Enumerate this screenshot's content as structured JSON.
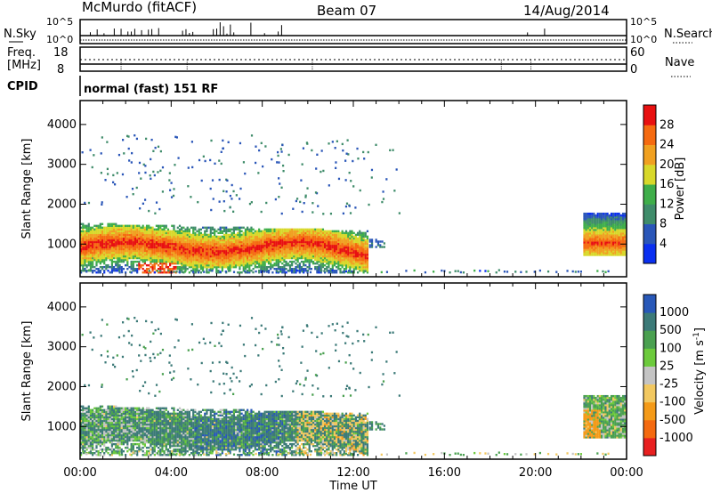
{
  "header": {
    "station": "McMurdo (fitACF)",
    "beam": "Beam 07",
    "date": "14/Aug/2014"
  },
  "top_panel": {
    "left_label": "N.Sky",
    "right_label": "N.Search",
    "left_ticks": [
      "10^5",
      "10^0"
    ],
    "right_ticks": [
      "10^5",
      "10^0"
    ]
  },
  "freq_panel": {
    "left_label_line1": "Freq.",
    "left_label_line2": "[MHz]",
    "left_ticks": [
      "18",
      "8"
    ],
    "right_label": "Nave",
    "right_ticks": [
      "60",
      "0"
    ]
  },
  "cpid": {
    "label": "CPID",
    "value": "normal (fast) 151 RF"
  },
  "x_axis": {
    "label": "Time UT",
    "ticks": [
      "00:00",
      "04:00",
      "08:00",
      "12:00",
      "16:00",
      "20:00",
      "00:00"
    ]
  },
  "colors": {
    "power": [
      "#0a2ff0",
      "#2a56b8",
      "#3f8c6a",
      "#3fae4a",
      "#d8d82a",
      "#f0a020",
      "#f56a10",
      "#e81010"
    ],
    "velocity": [
      "#e82020",
      "#f46a10",
      "#f49a18",
      "#f2c860",
      "#c4c4c4",
      "#6cca3c",
      "#4aa050",
      "#3c7a78",
      "#2858b8"
    ]
  },
  "chart_data": [
    {
      "type": "heatmap",
      "ylabel": "Slant Range [km]",
      "xlabel": "",
      "ylim": [
        180,
        4600
      ],
      "yticks": [
        1000,
        2000,
        3000,
        4000
      ],
      "xlim_hours": [
        0,
        24
      ],
      "colorbar": {
        "label": "Power [dB]",
        "ticks": [
          "4",
          "8",
          "12",
          "16",
          "20",
          "24",
          "28"
        ],
        "range": [
          0,
          32
        ]
      }
    },
    {
      "type": "heatmap",
      "ylabel": "Slant Range [km]",
      "xlabel": "Time UT",
      "ylim": [
        180,
        4600
      ],
      "yticks": [
        1000,
        2000,
        3000,
        4000
      ],
      "xlim_hours": [
        0,
        24
      ],
      "colorbar": {
        "label": "Velocity [m s^-1]",
        "ticks": [
          "1000",
          "500",
          "100",
          "25",
          "-25",
          "-100",
          "-500",
          "-1000"
        ]
      }
    }
  ]
}
